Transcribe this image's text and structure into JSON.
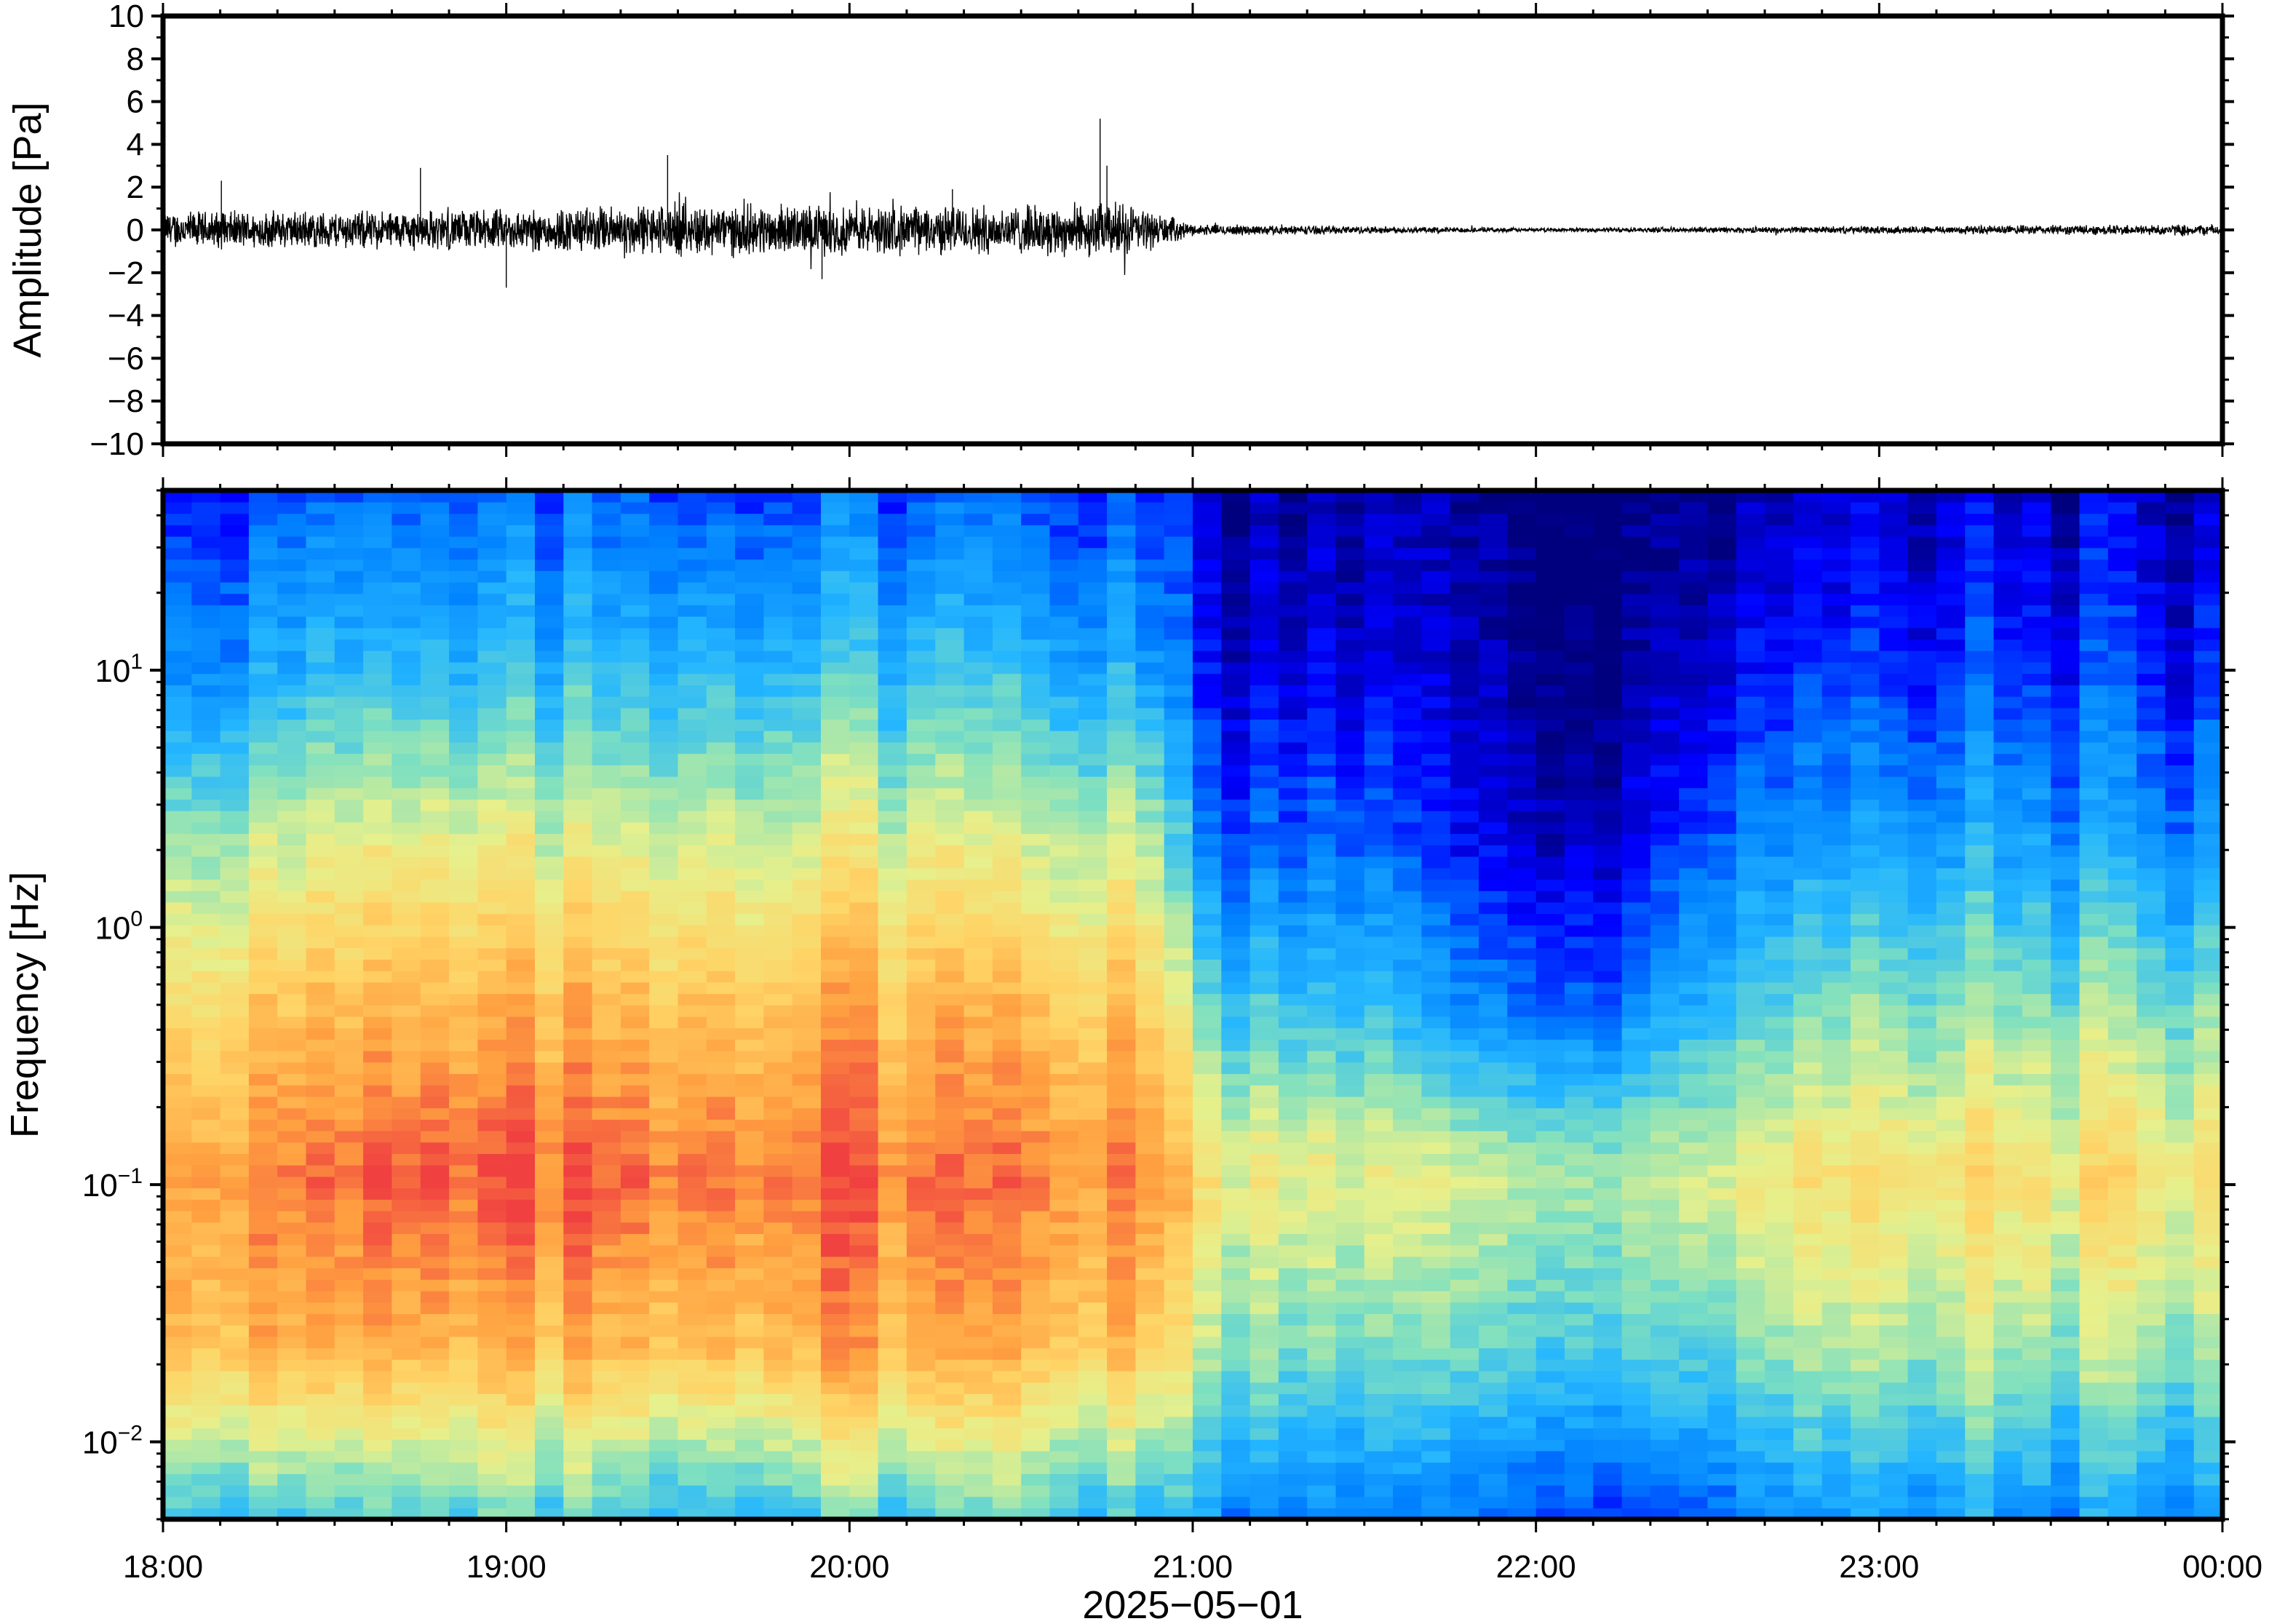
{
  "chart_data": [
    {
      "type": "line",
      "ylabel": "Amplitude [Pa]",
      "ylim": [
        -10,
        10
      ],
      "yticks": [
        10,
        8,
        6,
        4,
        2,
        0,
        -2,
        -4,
        -6,
        -8,
        -10
      ],
      "ytick_labels": [
        "10",
        "8",
        "6",
        "4",
        "2",
        "0",
        "−2",
        "−4",
        "−6",
        "−8",
        "−10"
      ],
      "x_start": "18:00",
      "x_end": "00:00",
      "series": [
        {
          "envelope_hours": [
            0,
            0.5,
            1,
            1.5,
            2,
            2.5,
            2.8,
            2.95,
            3,
            3.5,
            4,
            4.5,
            5,
            5.5,
            6
          ],
          "envelope_pa": [
            1.0,
            1.0,
            1.1,
            1.4,
            1.3,
            1.3,
            1.5,
            0.6,
            0.3,
            0.2,
            0.1,
            0.15,
            0.2,
            0.25,
            0.3
          ],
          "peaks": [
            {
              "hour": 0.17,
              "pa": 2.3
            },
            {
              "hour": 0.75,
              "pa": 2.9
            },
            {
              "hour": 1.0,
              "pa": -2.7
            },
            {
              "hour": 1.47,
              "pa": 3.5
            },
            {
              "hour": 1.92,
              "pa": -2.3
            },
            {
              "hour": 2.3,
              "pa": 1.9
            },
            {
              "hour": 2.73,
              "pa": 5.2
            },
            {
              "hour": 2.75,
              "pa": 3.0
            }
          ]
        }
      ]
    },
    {
      "type": "heatmap",
      "ylabel": "Frequency [Hz]",
      "xlabel": "2025−05−01",
      "yscale": "log",
      "ylim": [
        0.005,
        50
      ],
      "yticks": [
        0.01,
        0.1,
        1,
        10
      ],
      "ytick_labels": [
        {
          "base": "10",
          "exp": "−2"
        },
        {
          "base": "10",
          "exp": "−1"
        },
        {
          "base": "10",
          "exp": "0"
        },
        {
          "base": "10",
          "exp": "1"
        }
      ],
      "xticks": [
        "18:00",
        "19:00",
        "20:00",
        "21:00",
        "22:00",
        "23:00",
        "00:00"
      ],
      "colormap": [
        "#00007f",
        "#0000ff",
        "#0080ff",
        "#24b6ff",
        "#7fe0c0",
        "#e6f08c",
        "#ffd466",
        "#ffa040",
        "#f04040"
      ],
      "note": "power per time column (rows = log frequency, low to high)",
      "time_bins_hours": [
        0,
        0.5,
        1,
        1.5,
        2,
        2.5,
        2.9,
        3.0,
        3.5,
        3.8,
        4.2,
        4.5,
        5,
        5.5,
        6
      ],
      "power_profiles": [
        [
          0.45,
          0.85,
          0.9,
          0.75,
          0.55,
          0.3,
          0.18
        ],
        [
          0.4,
          0.8,
          0.92,
          0.78,
          0.6,
          0.35,
          0.2
        ],
        [
          0.45,
          0.8,
          0.95,
          0.8,
          0.6,
          0.35,
          0.2
        ],
        [
          0.4,
          0.82,
          0.95,
          0.82,
          0.62,
          0.4,
          0.22
        ],
        [
          0.45,
          0.85,
          0.95,
          0.83,
          0.63,
          0.4,
          0.22
        ],
        [
          0.45,
          0.82,
          0.92,
          0.8,
          0.6,
          0.38,
          0.2
        ],
        [
          0.4,
          0.8,
          0.93,
          0.8,
          0.6,
          0.35,
          0.2
        ],
        [
          0.3,
          0.55,
          0.68,
          0.45,
          0.22,
          0.1,
          0.05
        ],
        [
          0.28,
          0.5,
          0.66,
          0.42,
          0.25,
          0.12,
          0.06
        ],
        [
          0.2,
          0.45,
          0.58,
          0.25,
          0.08,
          0.02,
          0.0
        ],
        [
          0.2,
          0.45,
          0.58,
          0.25,
          0.08,
          0.02,
          0.0
        ],
        [
          0.25,
          0.5,
          0.66,
          0.42,
          0.25,
          0.12,
          0.05
        ],
        [
          0.3,
          0.55,
          0.68,
          0.5,
          0.3,
          0.15,
          0.06
        ],
        [
          0.3,
          0.55,
          0.7,
          0.52,
          0.32,
          0.17,
          0.08
        ],
        [
          0.3,
          0.55,
          0.7,
          0.5,
          0.28,
          0.15,
          0.06
        ]
      ]
    }
  ]
}
